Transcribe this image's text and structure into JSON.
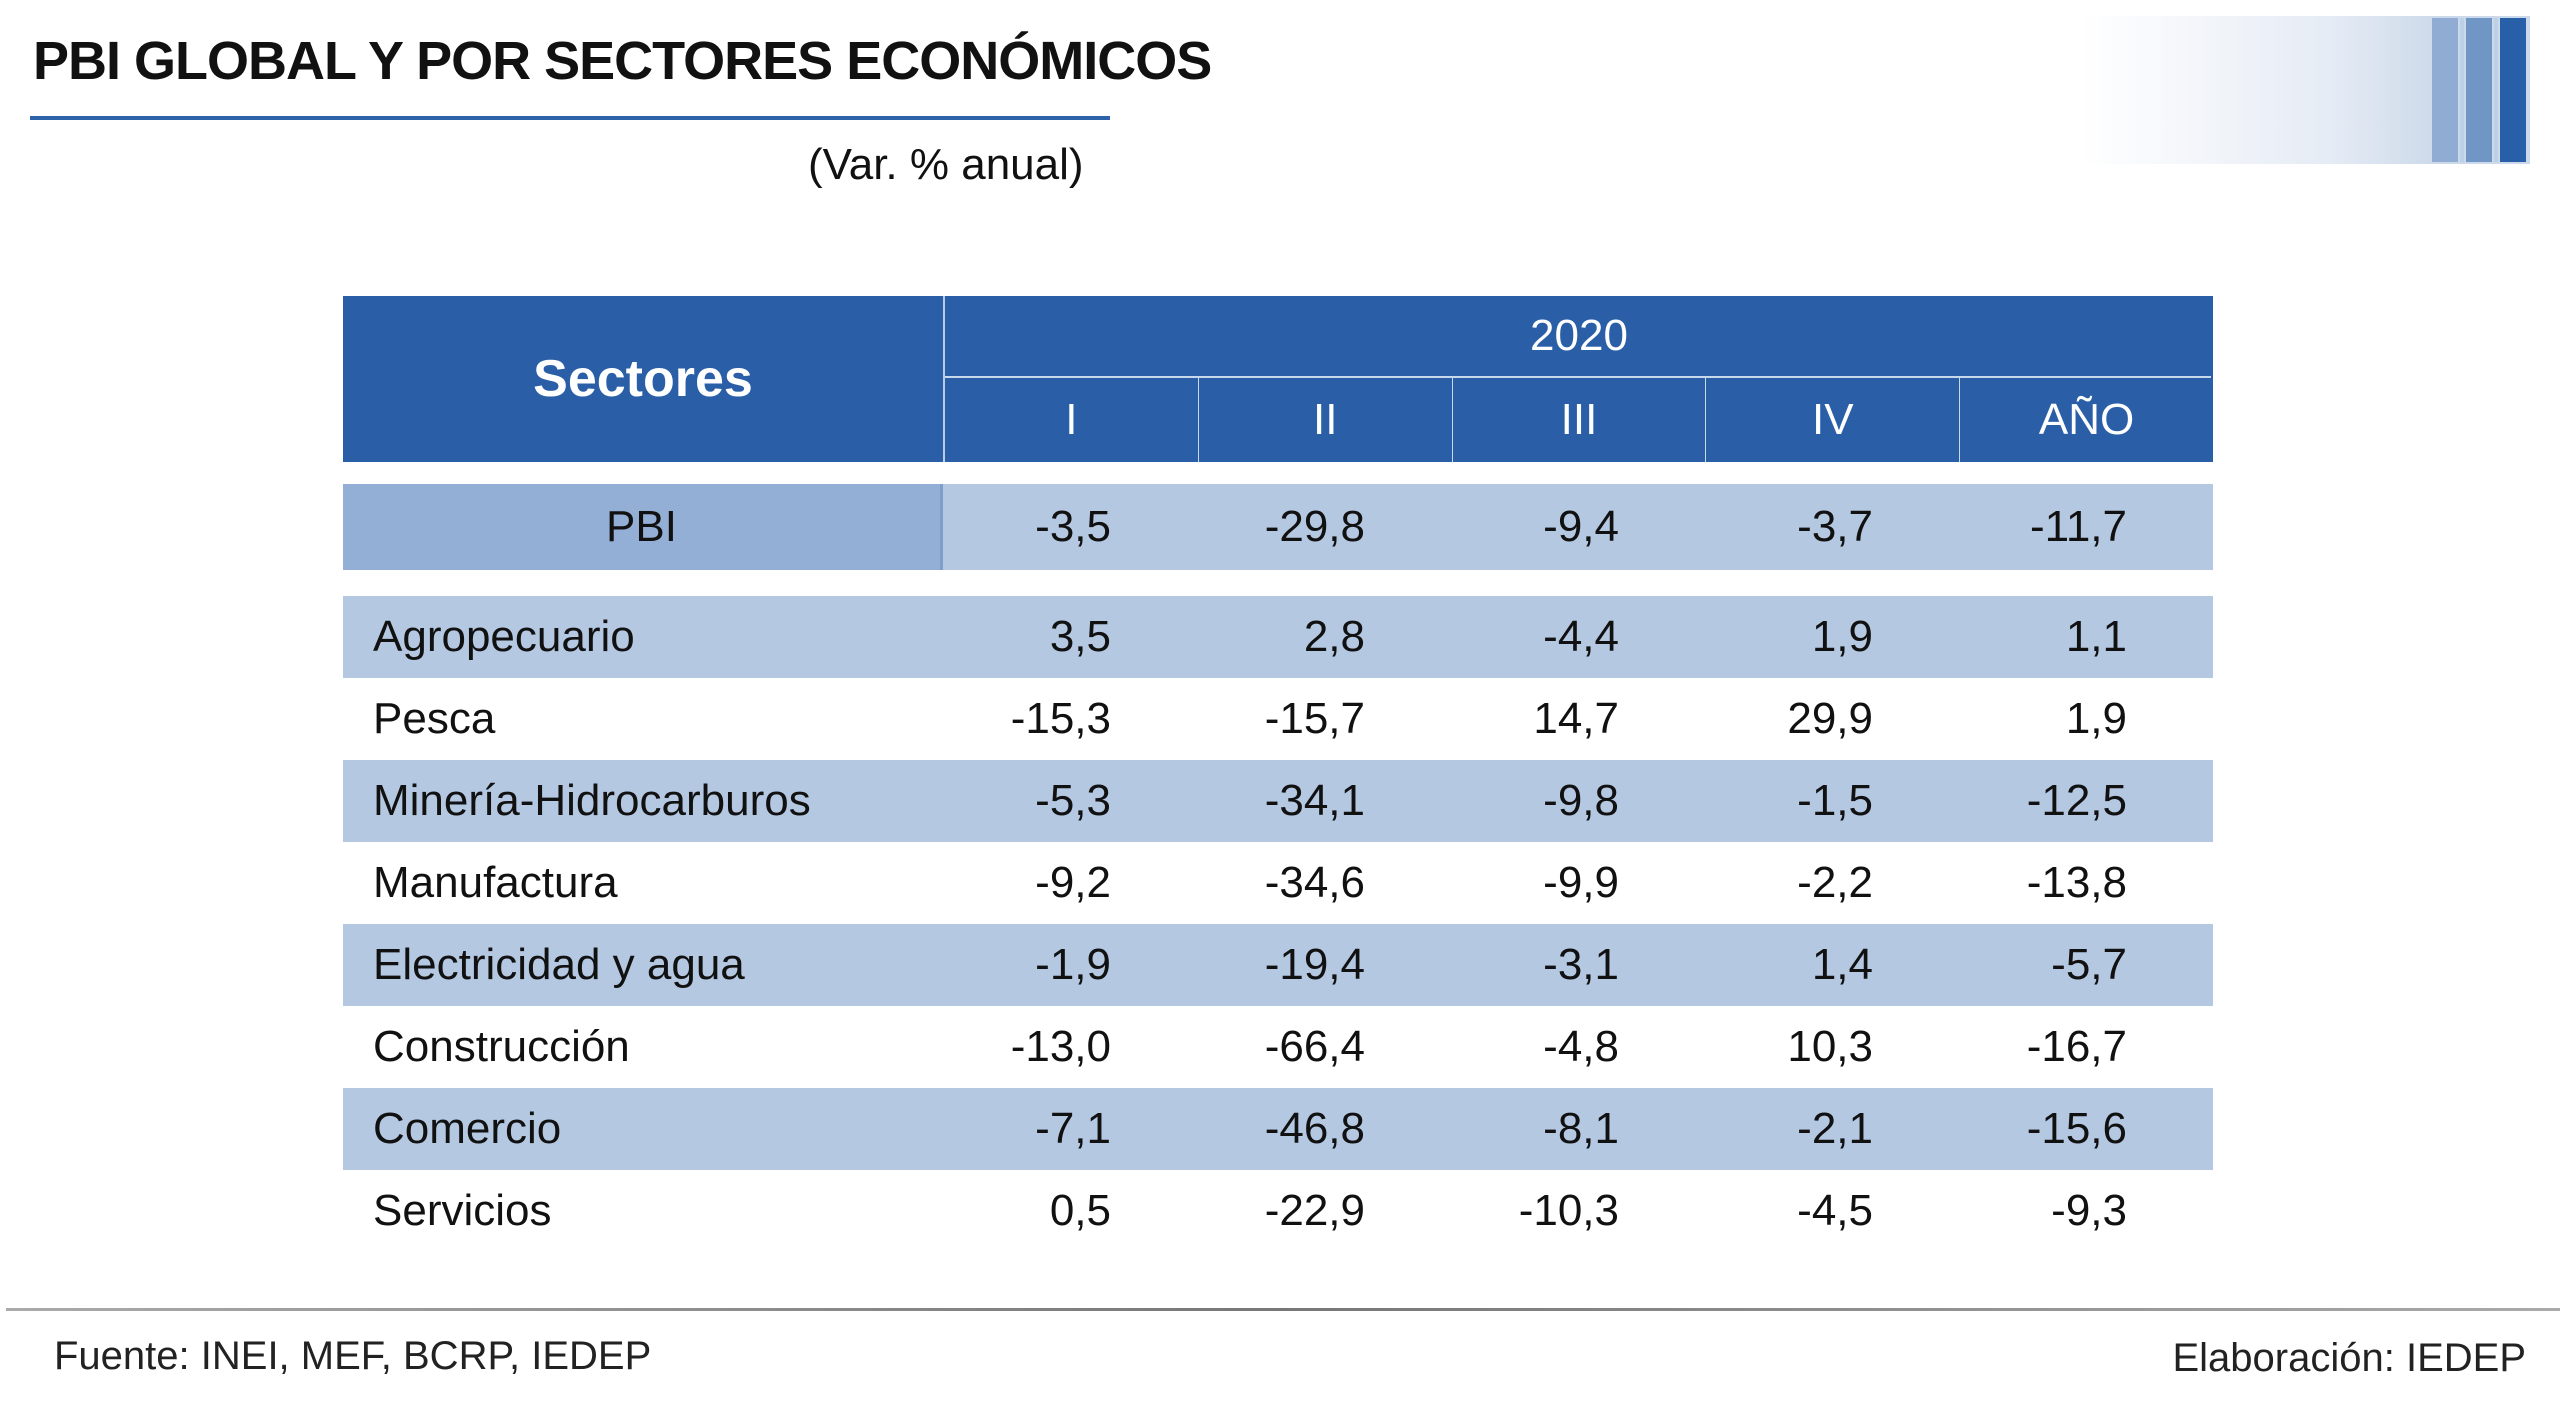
{
  "header": {
    "title": "PBI GLOBAL Y POR SECTORES ECONÓMICOS",
    "subtitle": "(Var. % anual)"
  },
  "table": {
    "row_header": "Sectores",
    "year": "2020",
    "columns": [
      "I",
      "II",
      "III",
      "IV",
      "AÑO"
    ],
    "pbi": {
      "name": "PBI",
      "values": [
        "-3,5",
        "-29,8",
        "-9,4",
        "-3,7",
        "-11,7"
      ]
    },
    "rows": [
      {
        "name": "Agropecuario",
        "values": [
          "3,5",
          "2,8",
          "-4,4",
          "1,9",
          "1,1"
        ]
      },
      {
        "name": "Pesca",
        "values": [
          "-15,3",
          "-15,7",
          "14,7",
          "29,9",
          "1,9"
        ]
      },
      {
        "name": "Minería-Hidrocarburos",
        "values": [
          "-5,3",
          "-34,1",
          "-9,8",
          "-1,5",
          "-12,5"
        ]
      },
      {
        "name": "Manufactura",
        "values": [
          "-9,2",
          "-34,6",
          "-9,9",
          "-2,2",
          "-13,8"
        ]
      },
      {
        "name": "Electricidad y agua",
        "values": [
          "-1,9",
          "-19,4",
          "-3,1",
          "1,4",
          "-5,7"
        ]
      },
      {
        "name": "Construcción",
        "values": [
          "-13,0",
          "-66,4",
          "-4,8",
          "10,3",
          "-16,7"
        ]
      },
      {
        "name": "Comercio",
        "values": [
          "-7,1",
          "-46,8",
          "-8,1",
          "-2,1",
          "-15,6"
        ]
      },
      {
        "name": "Servicios",
        "values": [
          "0,5",
          "-22,9",
          "-10,3",
          "-4,5",
          "-9,3"
        ]
      }
    ]
  },
  "footer": {
    "source": "Fuente: INEI, MEF, BCRP, IEDEP",
    "credit": "Elaboración: IEDEP"
  },
  "colors": {
    "header_blue": "#2a5fa8",
    "row_shade": "#b4c8e2",
    "pbi_label_shade": "#93afd6"
  }
}
